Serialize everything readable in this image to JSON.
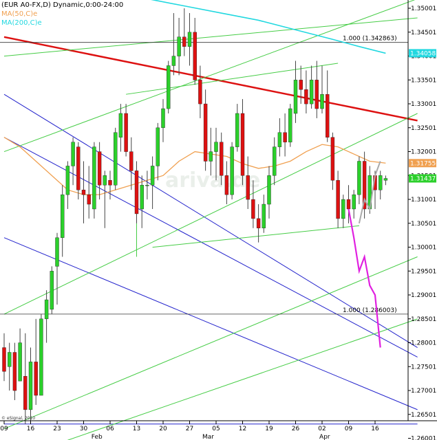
{
  "chart_data": {
    "type": "candlestick",
    "title": "(EUR A0-FX,D) Dynamic,0:00-24:00",
    "legend": [
      {
        "label": "MA(50,C)e",
        "color": "#f0a050"
      },
      {
        "label": "MA(200,C)e",
        "color": "#22d8e0"
      }
    ],
    "watermark": "ariva.de",
    "copyright": "© eSignal, 2010",
    "y_axis": {
      "min": 1.2575,
      "max": 1.3525,
      "ticks": [
        "1.350013",
        "1.345013",
        "1.340013",
        "1.335013",
        "1.330013",
        "1.325013",
        "1.320013",
        "1.315013",
        "1.310013",
        "1.305013",
        "1.300013",
        "1.295013",
        "1.290013",
        "1.285013",
        "1.280013",
        "1.275013",
        "1.270013",
        "1.265013",
        "1.260013"
      ],
      "price_tags": [
        {
          "label": "1.340583",
          "value": 1.3406,
          "color": "#22d8e0"
        },
        {
          "label": "1.317556",
          "value": 1.3176,
          "color": "#f0a050"
        },
        {
          "label": "1.31437",
          "value": 1.3144,
          "color": "#2bd02b"
        }
      ]
    },
    "x_axis": {
      "day_ticks": [
        {
          "label": "09",
          "i": 0
        },
        {
          "label": "16",
          "i": 5
        },
        {
          "label": "23",
          "i": 10
        },
        {
          "label": "30",
          "i": 15
        },
        {
          "label": "06",
          "i": 20
        },
        {
          "label": "13",
          "i": 25
        },
        {
          "label": "20",
          "i": 30
        },
        {
          "label": "27",
          "i": 35
        },
        {
          "label": "05",
          "i": 40
        },
        {
          "label": "12",
          "i": 45
        },
        {
          "label": "19",
          "i": 50
        },
        {
          "label": "26",
          "i": 55
        },
        {
          "label": "02",
          "i": 60
        },
        {
          "label": "09",
          "i": 65
        },
        {
          "label": "16",
          "i": 70
        }
      ],
      "month_ticks": [
        {
          "label": "Feb",
          "i": 17.5
        },
        {
          "label": "Mar",
          "i": 38.5
        },
        {
          "label": "Apr",
          "i": 60.5
        }
      ]
    },
    "candles": [
      [
        1.279,
        1.282,
        1.272,
        1.274
      ],
      [
        1.275,
        1.28,
        1.27,
        1.278
      ],
      [
        1.278,
        1.28,
        1.268,
        1.27
      ],
      [
        1.272,
        1.283,
        1.272,
        1.28
      ],
      [
        1.273,
        1.282,
        1.263,
        1.266
      ],
      [
        1.266,
        1.279,
        1.263,
        1.276
      ],
      [
        1.276,
        1.285,
        1.267,
        1.269
      ],
      [
        1.269,
        1.286,
        1.269,
        1.285
      ],
      [
        1.285,
        1.291,
        1.28,
        1.289
      ],
      [
        1.287,
        1.296,
        1.286,
        1.295
      ],
      [
        1.296,
        1.303,
        1.288,
        1.302
      ],
      [
        1.302,
        1.313,
        1.298,
        1.311
      ],
      [
        1.311,
        1.318,
        1.308,
        1.317
      ],
      [
        1.317,
        1.323,
        1.313,
        1.322
      ],
      [
        1.321,
        1.322,
        1.31,
        1.312
      ],
      [
        1.312,
        1.318,
        1.305,
        1.311
      ],
      [
        1.311,
        1.317,
        1.306,
        1.309
      ],
      [
        1.308,
        1.322,
        1.306,
        1.321
      ],
      [
        1.32,
        1.322,
        1.31,
        1.313
      ],
      [
        1.313,
        1.316,
        1.304,
        1.315
      ],
      [
        1.314,
        1.316,
        1.31,
        1.313
      ],
      [
        1.313,
        1.325,
        1.312,
        1.324
      ],
      [
        1.323,
        1.33,
        1.32,
        1.328
      ],
      [
        1.328,
        1.33,
        1.319,
        1.32
      ],
      [
        1.32,
        1.323,
        1.312,
        1.316
      ],
      [
        1.316,
        1.318,
        1.305,
        1.307
      ],
      [
        1.308,
        1.315,
        1.304,
        1.313
      ],
      [
        1.313,
        1.316,
        1.31,
        1.313
      ],
      [
        1.313,
        1.319,
        1.308,
        1.317
      ],
      [
        1.317,
        1.326,
        1.314,
        1.325
      ],
      [
        1.325,
        1.331,
        1.322,
        1.329
      ],
      [
        1.329,
        1.339,
        1.328,
        1.338
      ],
      [
        1.338,
        1.349,
        1.336,
        1.34
      ],
      [
        1.34,
        1.348,
        1.336,
        1.344
      ],
      [
        1.344,
        1.35,
        1.34,
        1.342
      ],
      [
        1.342,
        1.349,
        1.338,
        1.345
      ],
      [
        1.345,
        1.348,
        1.334,
        1.335
      ],
      [
        1.335,
        1.338,
        1.327,
        1.33
      ],
      [
        1.33,
        1.333,
        1.316,
        1.318
      ],
      [
        1.318,
        1.325,
        1.315,
        1.32
      ],
      [
        1.32,
        1.325,
        1.314,
        1.322
      ],
      [
        1.322,
        1.324,
        1.313,
        1.315
      ],
      [
        1.315,
        1.318,
        1.309,
        1.311
      ],
      [
        1.311,
        1.322,
        1.31,
        1.321
      ],
      [
        1.321,
        1.33,
        1.32,
        1.328
      ],
      [
        1.328,
        1.331,
        1.313,
        1.315
      ],
      [
        1.315,
        1.319,
        1.308,
        1.31
      ],
      [
        1.31,
        1.314,
        1.304,
        1.306
      ],
      [
        1.306,
        1.309,
        1.301,
        1.304
      ],
      [
        1.304,
        1.311,
        1.303,
        1.309
      ],
      [
        1.309,
        1.317,
        1.306,
        1.315
      ],
      [
        1.315,
        1.323,
        1.313,
        1.321
      ],
      [
        1.321,
        1.327,
        1.319,
        1.324
      ],
      [
        1.324,
        1.328,
        1.319,
        1.322
      ],
      [
        1.322,
        1.33,
        1.321,
        1.329
      ],
      [
        1.328,
        1.339,
        1.326,
        1.335
      ],
      [
        1.335,
        1.338,
        1.33,
        1.333
      ],
      [
        1.333,
        1.337,
        1.328,
        1.33
      ],
      [
        1.33,
        1.338,
        1.329,
        1.335
      ],
      [
        1.335,
        1.339,
        1.327,
        1.329
      ],
      [
        1.329,
        1.338,
        1.328,
        1.332
      ],
      [
        1.332,
        1.337,
        1.322,
        1.323
      ],
      [
        1.323,
        1.324,
        1.312,
        1.314
      ],
      [
        1.314,
        1.316,
        1.304,
        1.306
      ],
      [
        1.306,
        1.311,
        1.304,
        1.31
      ],
      [
        1.31,
        1.313,
        1.305,
        1.308
      ],
      [
        1.308,
        1.312,
        1.306,
        1.311
      ],
      [
        1.311,
        1.319,
        1.309,
        1.318
      ],
      [
        1.318,
        1.32,
        1.306,
        1.308
      ],
      [
        1.308,
        1.317,
        1.307,
        1.315
      ],
      [
        1.315,
        1.316,
        1.308,
        1.312
      ],
      [
        1.312,
        1.316,
        1.31,
        1.315
      ],
      [
        1.314,
        1.315,
        1.313,
        1.3144
      ]
    ],
    "ma50": [
      [
        0,
        1.323
      ],
      [
        3,
        1.321
      ],
      [
        6,
        1.318
      ],
      [
        9,
        1.315
      ],
      [
        12,
        1.312
      ],
      [
        15,
        1.311
      ],
      [
        18,
        1.311
      ],
      [
        21,
        1.312
      ],
      [
        24,
        1.313
      ],
      [
        27,
        1.314
      ],
      [
        30,
        1.315
      ],
      [
        33,
        1.318
      ],
      [
        36,
        1.32
      ],
      [
        39,
        1.3195
      ],
      [
        42,
        1.319
      ],
      [
        45,
        1.3175
      ],
      [
        48,
        1.3165
      ],
      [
        51,
        1.317
      ],
      [
        54,
        1.318
      ],
      [
        57,
        1.32
      ],
      [
        60,
        1.3215
      ],
      [
        63,
        1.321
      ],
      [
        66,
        1.3195
      ],
      [
        69,
        1.318
      ],
      [
        72,
        1.3176
      ]
    ],
    "ma200": [
      [
        13,
        1.354
      ],
      [
        20,
        1.353
      ],
      [
        27,
        1.352
      ],
      [
        34,
        1.3505
      ],
      [
        41,
        1.349
      ],
      [
        48,
        1.3475
      ],
      [
        55,
        1.3455
      ],
      [
        62,
        1.3435
      ],
      [
        67,
        1.342
      ],
      [
        72,
        1.3406
      ]
    ],
    "fib_levels": [
      {
        "label": "1.000 (1.342863)",
        "value": 1.342863
      },
      {
        "label": "1.000 (1.286003)",
        "value": 1.286003
      }
    ],
    "forecast_pink": [
      [
        65,
        1.308
      ],
      [
        66,
        1.302
      ],
      [
        67,
        1.295
      ],
      [
        68,
        1.298
      ],
      [
        69,
        1.292
      ],
      [
        70,
        1.29
      ],
      [
        71,
        1.279
      ]
    ],
    "forecast_gray": [
      [
        67,
        1.305
      ],
      [
        68,
        1.31
      ],
      [
        69,
        1.308
      ],
      [
        70,
        1.315
      ],
      [
        71,
        1.318
      ]
    ],
    "trendlines": [
      {
        "color": "#dd1111",
        "width": 2.5,
        "from": [
          0,
          1.344
        ],
        "to": [
          78,
          1.3265
        ]
      },
      {
        "color": "#2222cc",
        "width": 1,
        "from": [
          0,
          1.332
        ],
        "to": [
          78,
          1.279
        ]
      },
      {
        "color": "#2222cc",
        "width": 1,
        "from": [
          0,
          1.323
        ],
        "to": [
          78,
          1.277
        ]
      },
      {
        "color": "#2222cc",
        "width": 1,
        "from": [
          0,
          1.302
        ],
        "to": [
          78,
          1.266
        ]
      },
      {
        "color": "#2222cc",
        "width": 1,
        "from": [
          0,
          1.263
        ],
        "to": [
          78,
          1.263
        ]
      },
      {
        "color": "#44cc44",
        "width": 1,
        "from": [
          0,
          1.34
        ],
        "to": [
          78,
          1.348
        ]
      },
      {
        "color": "#44cc44",
        "width": 1,
        "from": [
          0,
          1.32
        ],
        "to": [
          78,
          1.352
        ]
      },
      {
        "color": "#44cc44",
        "width": 1,
        "from": [
          0,
          1.286
        ],
        "to": [
          78,
          1.328
        ]
      },
      {
        "color": "#44cc44",
        "width": 1,
        "from": [
          0,
          1.262
        ],
        "to": [
          78,
          1.298
        ]
      },
      {
        "color": "#44cc44",
        "width": 1,
        "from": [
          0,
          1.255
        ],
        "to": [
          78,
          1.285
        ]
      },
      {
        "color": "#44cc44",
        "width": 1,
        "from": [
          23,
          1.332
        ],
        "to": [
          63,
          1.3385
        ]
      },
      {
        "color": "#44cc44",
        "width": 1,
        "from": [
          28,
          1.3
        ],
        "to": [
          67,
          1.3045
        ]
      },
      {
        "color": "#44cc44",
        "width": 1,
        "from": [
          25,
          1.298
        ],
        "to": [
          25,
          1.305
        ]
      }
    ],
    "colors": {
      "up": "#2bd02b",
      "down": "#dd1111",
      "wick": "#444444",
      "forecast": "#e020e0",
      "forecast_alt": "#aaaaaa"
    }
  }
}
